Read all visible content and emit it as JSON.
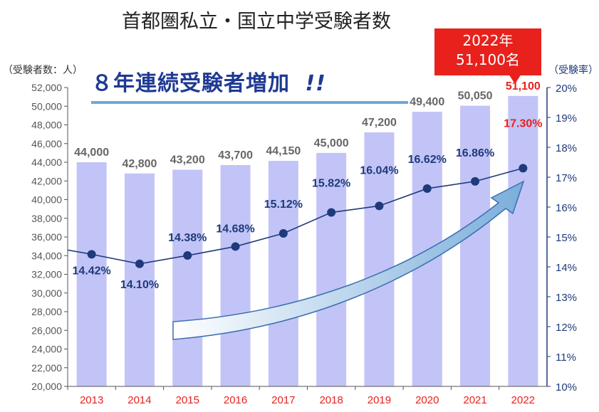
{
  "title": "首都圏私立・国立中学受験者数",
  "headline": "８年連続受験者増加",
  "headline_emphasis": "!!",
  "callout": {
    "line1": "2022年",
    "line2": "51,100名"
  },
  "colors": {
    "bar": "#c2c4f7",
    "line": "#1f3a7a",
    "highlight": "#e8211c",
    "arrow": "#7aaedb"
  },
  "chart_data": {
    "type": "bar+line",
    "categories": [
      "2013",
      "2014",
      "2015",
      "2016",
      "2017",
      "2018",
      "2019",
      "2020",
      "2021",
      "2022"
    ],
    "series": [
      {
        "values": [
          44000,
          42800,
          43200,
          43700,
          44150,
          45000,
          47200,
          49400,
          50050,
          51100
        ],
        "axis": "left",
        "labels": [
          "44,000",
          "42,800",
          "43,200",
          "43,700",
          "44,150",
          "45,000",
          "47,200",
          "49,400",
          "50,050",
          "51,100"
        ]
      },
      {
        "values": [
          14.42,
          14.1,
          14.38,
          14.68,
          15.12,
          15.82,
          16.04,
          16.62,
          16.86,
          17.3
        ],
        "axis": "right",
        "labels": [
          "14.42%",
          "14.10%",
          "14.38%",
          "14.68%",
          "15.12%",
          "15.82%",
          "16.04%",
          "16.62%",
          "16.86%",
          "17.30%"
        ]
      }
    ],
    "left_axis": {
      "label": "（受験者数：人）",
      "ylim": [
        20000,
        52000
      ],
      "ticks": [
        "20,000",
        "22,000",
        "24,000",
        "26,000",
        "28,000",
        "30,000",
        "32,000",
        "34,000",
        "36,000",
        "38,000",
        "40,000",
        "42,000",
        "44,000",
        "46,000",
        "48,000",
        "50,000",
        "52,000"
      ]
    },
    "right_axis": {
      "label": "（受験率）",
      "ylim": [
        10,
        20
      ],
      "ticks": [
        "10%",
        "11%",
        "12%",
        "13%",
        "14%",
        "15%",
        "16%",
        "17%",
        "18%",
        "19%",
        "20%"
      ]
    },
    "highlight_index": 9,
    "legend": "none",
    "grid": false
  }
}
